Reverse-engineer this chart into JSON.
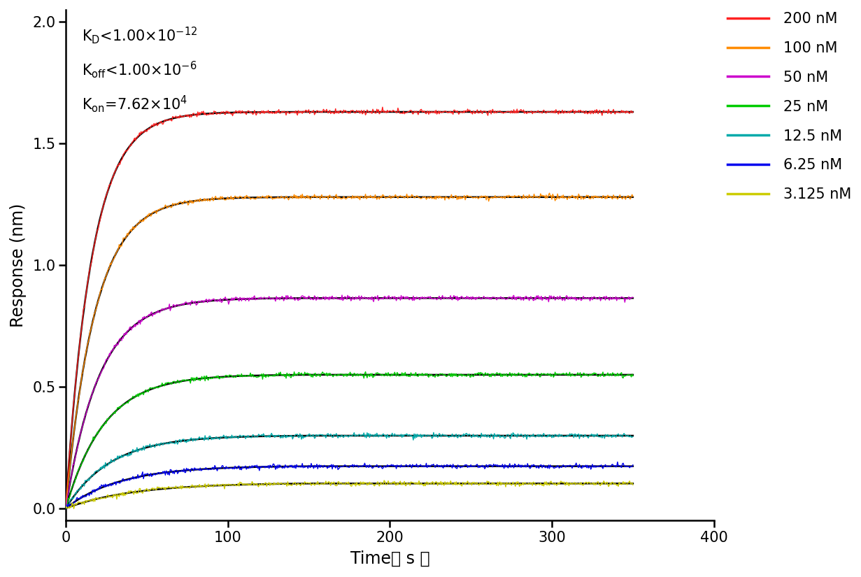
{
  "xlabel": "Time（ s ）",
  "ylabel": "Response (nm)",
  "xlim": [
    0,
    400
  ],
  "ylim": [
    -0.05,
    2.05
  ],
  "xticks": [
    0,
    100,
    200,
    300,
    400
  ],
  "yticks": [
    0.0,
    0.5,
    1.0,
    1.5,
    2.0
  ],
  "annotation_lines": [
    "K$_{\\rm D}$<1.00×10$^{-12}$",
    "K$_{\\rm off}$<1.00×10$^{-6}$",
    "K$_{\\rm on}$=7.62×10$^{4}$"
  ],
  "series": [
    {
      "label": "200 nM",
      "color": "#FF2222",
      "plateau": 1.63,
      "k_assoc": 0.062,
      "t_assoc": 150
    },
    {
      "label": "100 nM",
      "color": "#FF8C00",
      "plateau": 1.28,
      "k_assoc": 0.055,
      "t_assoc": 150
    },
    {
      "label": "50 nM",
      "color": "#CC00CC",
      "plateau": 0.865,
      "k_assoc": 0.048,
      "t_assoc": 150
    },
    {
      "label": "25 nM",
      "color": "#00CC00",
      "plateau": 0.55,
      "k_assoc": 0.042,
      "t_assoc": 150
    },
    {
      "label": "12.5 nM",
      "color": "#00AAAA",
      "plateau": 0.3,
      "k_assoc": 0.036,
      "t_assoc": 150
    },
    {
      "label": "6.25 nM",
      "color": "#0000EE",
      "plateau": 0.175,
      "k_assoc": 0.03,
      "t_assoc": 150
    },
    {
      "label": "3.125 nM",
      "color": "#CCCC00",
      "plateau": 0.105,
      "k_assoc": 0.024,
      "t_assoc": 150
    }
  ],
  "noise_amp": 0.005,
  "fit_color": "#000000",
  "background_color": "#FFFFFF",
  "legend_fontsize": 15,
  "tick_fontsize": 15,
  "label_fontsize": 17,
  "annot_fontsize": 15
}
